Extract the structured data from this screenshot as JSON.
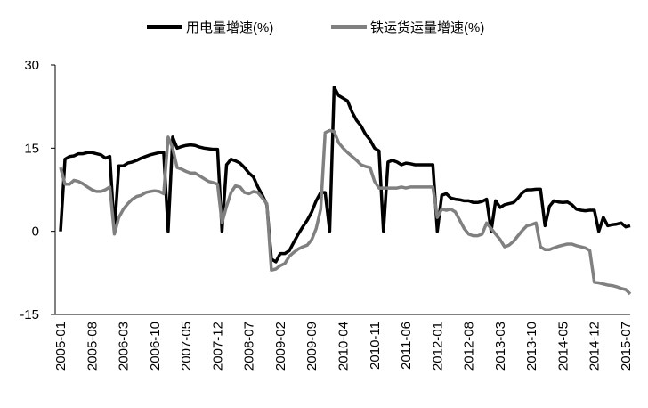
{
  "chart_data": {
    "type": "line",
    "categories": [
      "2005-01",
      null,
      null,
      null,
      null,
      null,
      null,
      "2005-08",
      null,
      null,
      null,
      null,
      null,
      null,
      "2006-03",
      null,
      null,
      null,
      null,
      null,
      null,
      "2006-10",
      null,
      null,
      null,
      null,
      null,
      null,
      "2007-05",
      null,
      null,
      null,
      null,
      null,
      null,
      "2007-12",
      null,
      null,
      null,
      null,
      null,
      null,
      "2008-07",
      null,
      null,
      null,
      null,
      null,
      null,
      "2009-02",
      null,
      null,
      null,
      null,
      null,
      null,
      "2009-09",
      null,
      null,
      null,
      null,
      null,
      null,
      "2010-04",
      null,
      null,
      null,
      null,
      null,
      null,
      "2010-11",
      null,
      null,
      null,
      null,
      null,
      null,
      "2011-06",
      null,
      null,
      null,
      null,
      null,
      null,
      "2012-01",
      null,
      null,
      null,
      null,
      null,
      null,
      "2012-08",
      null,
      null,
      null,
      null,
      null,
      null,
      "2013-03",
      null,
      null,
      null,
      null,
      null,
      null,
      "2013-10",
      null,
      null,
      null,
      null,
      null,
      null,
      "2014-05",
      null,
      null,
      null,
      null,
      null,
      null,
      "2014-12",
      null,
      null,
      null,
      null,
      null,
      null,
      "2015-07",
      null
    ],
    "series": [
      {
        "name": "用电量增速(%)",
        "color": "#000000",
        "values": [
          0,
          13,
          13.5,
          13.6,
          14,
          14,
          14.2,
          14.2,
          14,
          13.8,
          13.2,
          13.5,
          0,
          11.8,
          11.8,
          12.3,
          12.5,
          12.8,
          13.2,
          13.5,
          13.8,
          14,
          14.2,
          14.2,
          0,
          17,
          15,
          15.3,
          15.5,
          15.6,
          15.5,
          15.2,
          15,
          14.9,
          14.8,
          14.8,
          0,
          12,
          13,
          12.7,
          12.3,
          11.5,
          10.5,
          9.8,
          8,
          6.5,
          4.8,
          -5,
          -5.5,
          -4,
          -4,
          -3.5,
          -2,
          -0.5,
          0.8,
          2,
          3.5,
          5.5,
          7,
          7,
          0,
          26,
          24.5,
          24,
          23.5,
          21.5,
          20,
          19,
          17.5,
          16.5,
          15,
          14.5,
          0,
          12.5,
          12.8,
          12.5,
          12,
          12.3,
          12.2,
          12,
          12,
          12,
          12,
          12,
          0,
          6.5,
          6.8,
          6,
          5.8,
          5.7,
          5.5,
          5.5,
          5.2,
          5.2,
          5.4,
          5.8,
          0,
          5.5,
          4.3,
          4.8,
          5,
          5.2,
          6,
          7,
          7.5,
          7.5,
          7.6,
          7.6,
          1,
          4.5,
          5.5,
          5.3,
          5.2,
          5.3,
          4.8,
          4,
          3.8,
          3.7,
          3.8,
          3.8,
          0,
          2.5,
          1,
          1.2,
          1.3,
          1.5,
          0.8,
          1
        ]
      },
      {
        "name": "铁运货运量增速(%)",
        "color": "#808080",
        "values": [
          11.5,
          8.5,
          8.5,
          9.2,
          9,
          8.6,
          8,
          7.5,
          7.2,
          7.2,
          7.5,
          8,
          -0.5,
          2.5,
          4,
          5,
          5.8,
          6.3,
          6.5,
          7,
          7.2,
          7.3,
          7.2,
          6.8,
          17,
          15,
          11.5,
          11.2,
          10.8,
          10.5,
          10.5,
          10,
          9.5,
          9,
          8.8,
          8.5,
          1.5,
          4.5,
          7,
          8.2,
          8,
          7,
          6.8,
          7.2,
          7,
          6,
          5,
          -7,
          -6.8,
          -6.2,
          -5.8,
          -4.5,
          -3.8,
          -3.2,
          -2.8,
          -2.5,
          -1.5,
          0.5,
          4,
          17.8,
          18.2,
          18,
          16,
          15,
          14.2,
          13.5,
          12.8,
          12,
          11.7,
          11.5,
          9,
          7.8,
          7.8,
          7.8,
          7.8,
          7.8,
          8,
          7.8,
          8,
          8,
          8,
          8,
          8,
          8,
          2.5,
          4,
          3.8,
          4,
          3.5,
          2,
          0.5,
          -0.5,
          -0.8,
          -0.8,
          -0.5,
          1.5,
          0.5,
          -0.5,
          -1.5,
          -2.8,
          -2.5,
          -1.8,
          -0.8,
          0.2,
          1,
          1.2,
          1.5,
          -2.8,
          -3.3,
          -3.3,
          -3,
          -2.7,
          -2.5,
          -2.3,
          -2.3,
          -2.6,
          -2.8,
          -3,
          -3.5,
          -9.2,
          -9.3,
          -9.5,
          -9.7,
          -9.8,
          -10,
          -10.3,
          -10.5,
          -11.3
        ]
      }
    ],
    "ylim": [
      -15,
      30
    ],
    "yticks": [
      -15,
      0,
      15,
      30
    ],
    "grid": false
  }
}
